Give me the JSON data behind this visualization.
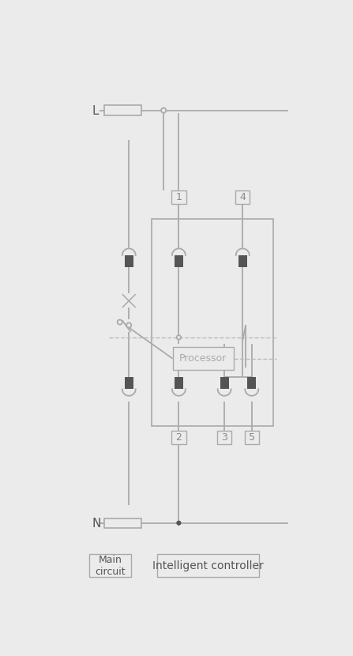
{
  "bg_color": "#ebebeb",
  "line_color": "#aaaaaa",
  "dark_color": "#555555",
  "dashed_color": "#bbbbbb",
  "proc_text_color": "#aaaaaa",
  "label_text_color": "#888888",
  "figsize": [
    4.47,
    8.3
  ],
  "dpi": 100,
  "title_L": "L",
  "title_N": "N",
  "label_1": "1",
  "label_2": "2",
  "label_3": "3",
  "label_4": "4",
  "label_5": "5",
  "label_processor": "Processor",
  "label_main": "Main\ncircuit",
  "label_intelligent": "Intelligent controller"
}
